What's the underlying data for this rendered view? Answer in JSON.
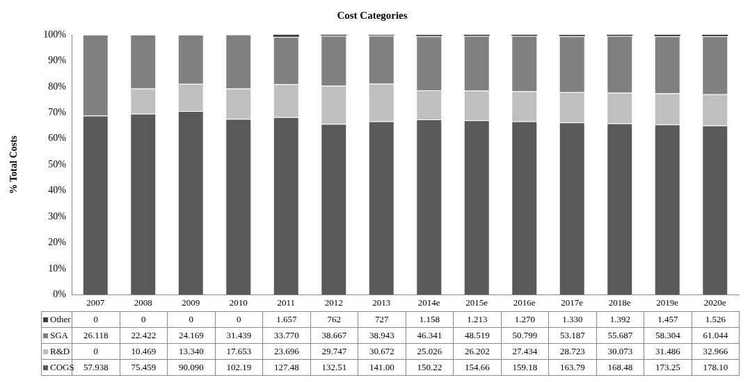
{
  "chart_data": {
    "type": "bar",
    "title": "Cost Categories",
    "ylabel": "% Total Costs",
    "categories": [
      "2007",
      "2008",
      "2009",
      "2010",
      "2011",
      "2012",
      "2013",
      "2014e",
      "2015e",
      "2016e",
      "2017e",
      "2018e",
      "2019e",
      "2020e"
    ],
    "stacked": true,
    "ylim": [
      0,
      100
    ],
    "yticks": [
      {
        "value": 0,
        "label": "0%"
      },
      {
        "value": 10,
        "label": "10%"
      },
      {
        "value": 20,
        "label": "20%"
      },
      {
        "value": 30,
        "label": "30%"
      },
      {
        "value": 40,
        "label": "40%"
      },
      {
        "value": 50,
        "label": "50%"
      },
      {
        "value": 60,
        "label": "60%"
      },
      {
        "value": 70,
        "label": "70%"
      },
      {
        "value": 80,
        "label": "80%"
      },
      {
        "value": 90,
        "label": "90%"
      },
      {
        "value": 100,
        "label": "100%"
      }
    ],
    "grid": false,
    "legend": "bottom left",
    "series": [
      {
        "name": "COGS",
        "color": "#595959",
        "values": [
          68.9,
          69.6,
          70.6,
          67.6,
          68.3,
          65.7,
          66.7,
          67.4,
          67.1,
          66.7,
          66.3,
          65.9,
          65.5,
          65.1
        ]
      },
      {
        "name": "R&D",
        "color": "#bfbfbf",
        "values": [
          0,
          9.7,
          10.5,
          11.7,
          12.7,
          14.7,
          14.5,
          11.2,
          11.4,
          11.5,
          11.6,
          11.8,
          11.9,
          12.0
        ]
      },
      {
        "name": "SGA",
        "color": "#808080",
        "values": [
          31.1,
          20.7,
          18.9,
          20.8,
          18.1,
          19.2,
          18.4,
          20.8,
          21.0,
          21.3,
          21.5,
          21.8,
          22.0,
          22.3
        ]
      },
      {
        "name": "Other",
        "color": "#404040",
        "values": [
          0,
          0,
          0,
          0,
          0.9,
          0.4,
          0.3,
          0.5,
          0.5,
          0.5,
          0.5,
          0.5,
          0.6,
          0.6
        ]
      }
    ],
    "annotations": [
      "0",
      "0",
      "0",
      "0",
      "1.657",
      "762",
      "727",
      "1.158",
      "1.213",
      "1.270",
      "1.330",
      "1.392",
      "1.457",
      "1.526",
      "26.118",
      "22.422",
      "24.169",
      "31.439",
      "33.770",
      "38.667",
      "38.943",
      "46.341",
      "48.519",
      "50.799",
      "53.187",
      "55.687",
      "58.304",
      "61.044",
      "0",
      "10.469",
      "13.340",
      "17.653",
      "23.696",
      "29.747",
      "30.672",
      "25.026",
      "26.202",
      "27.434",
      "28.723",
      "30.073",
      "31.486",
      "32.966",
      "57.938",
      "75.459",
      "90.090",
      "102.19",
      "127.48",
      "132.51",
      "141.00",
      "150.22",
      "154.66",
      "159.18",
      "163.79",
      "168.48",
      "173.25",
      "178.10"
    ]
  }
}
